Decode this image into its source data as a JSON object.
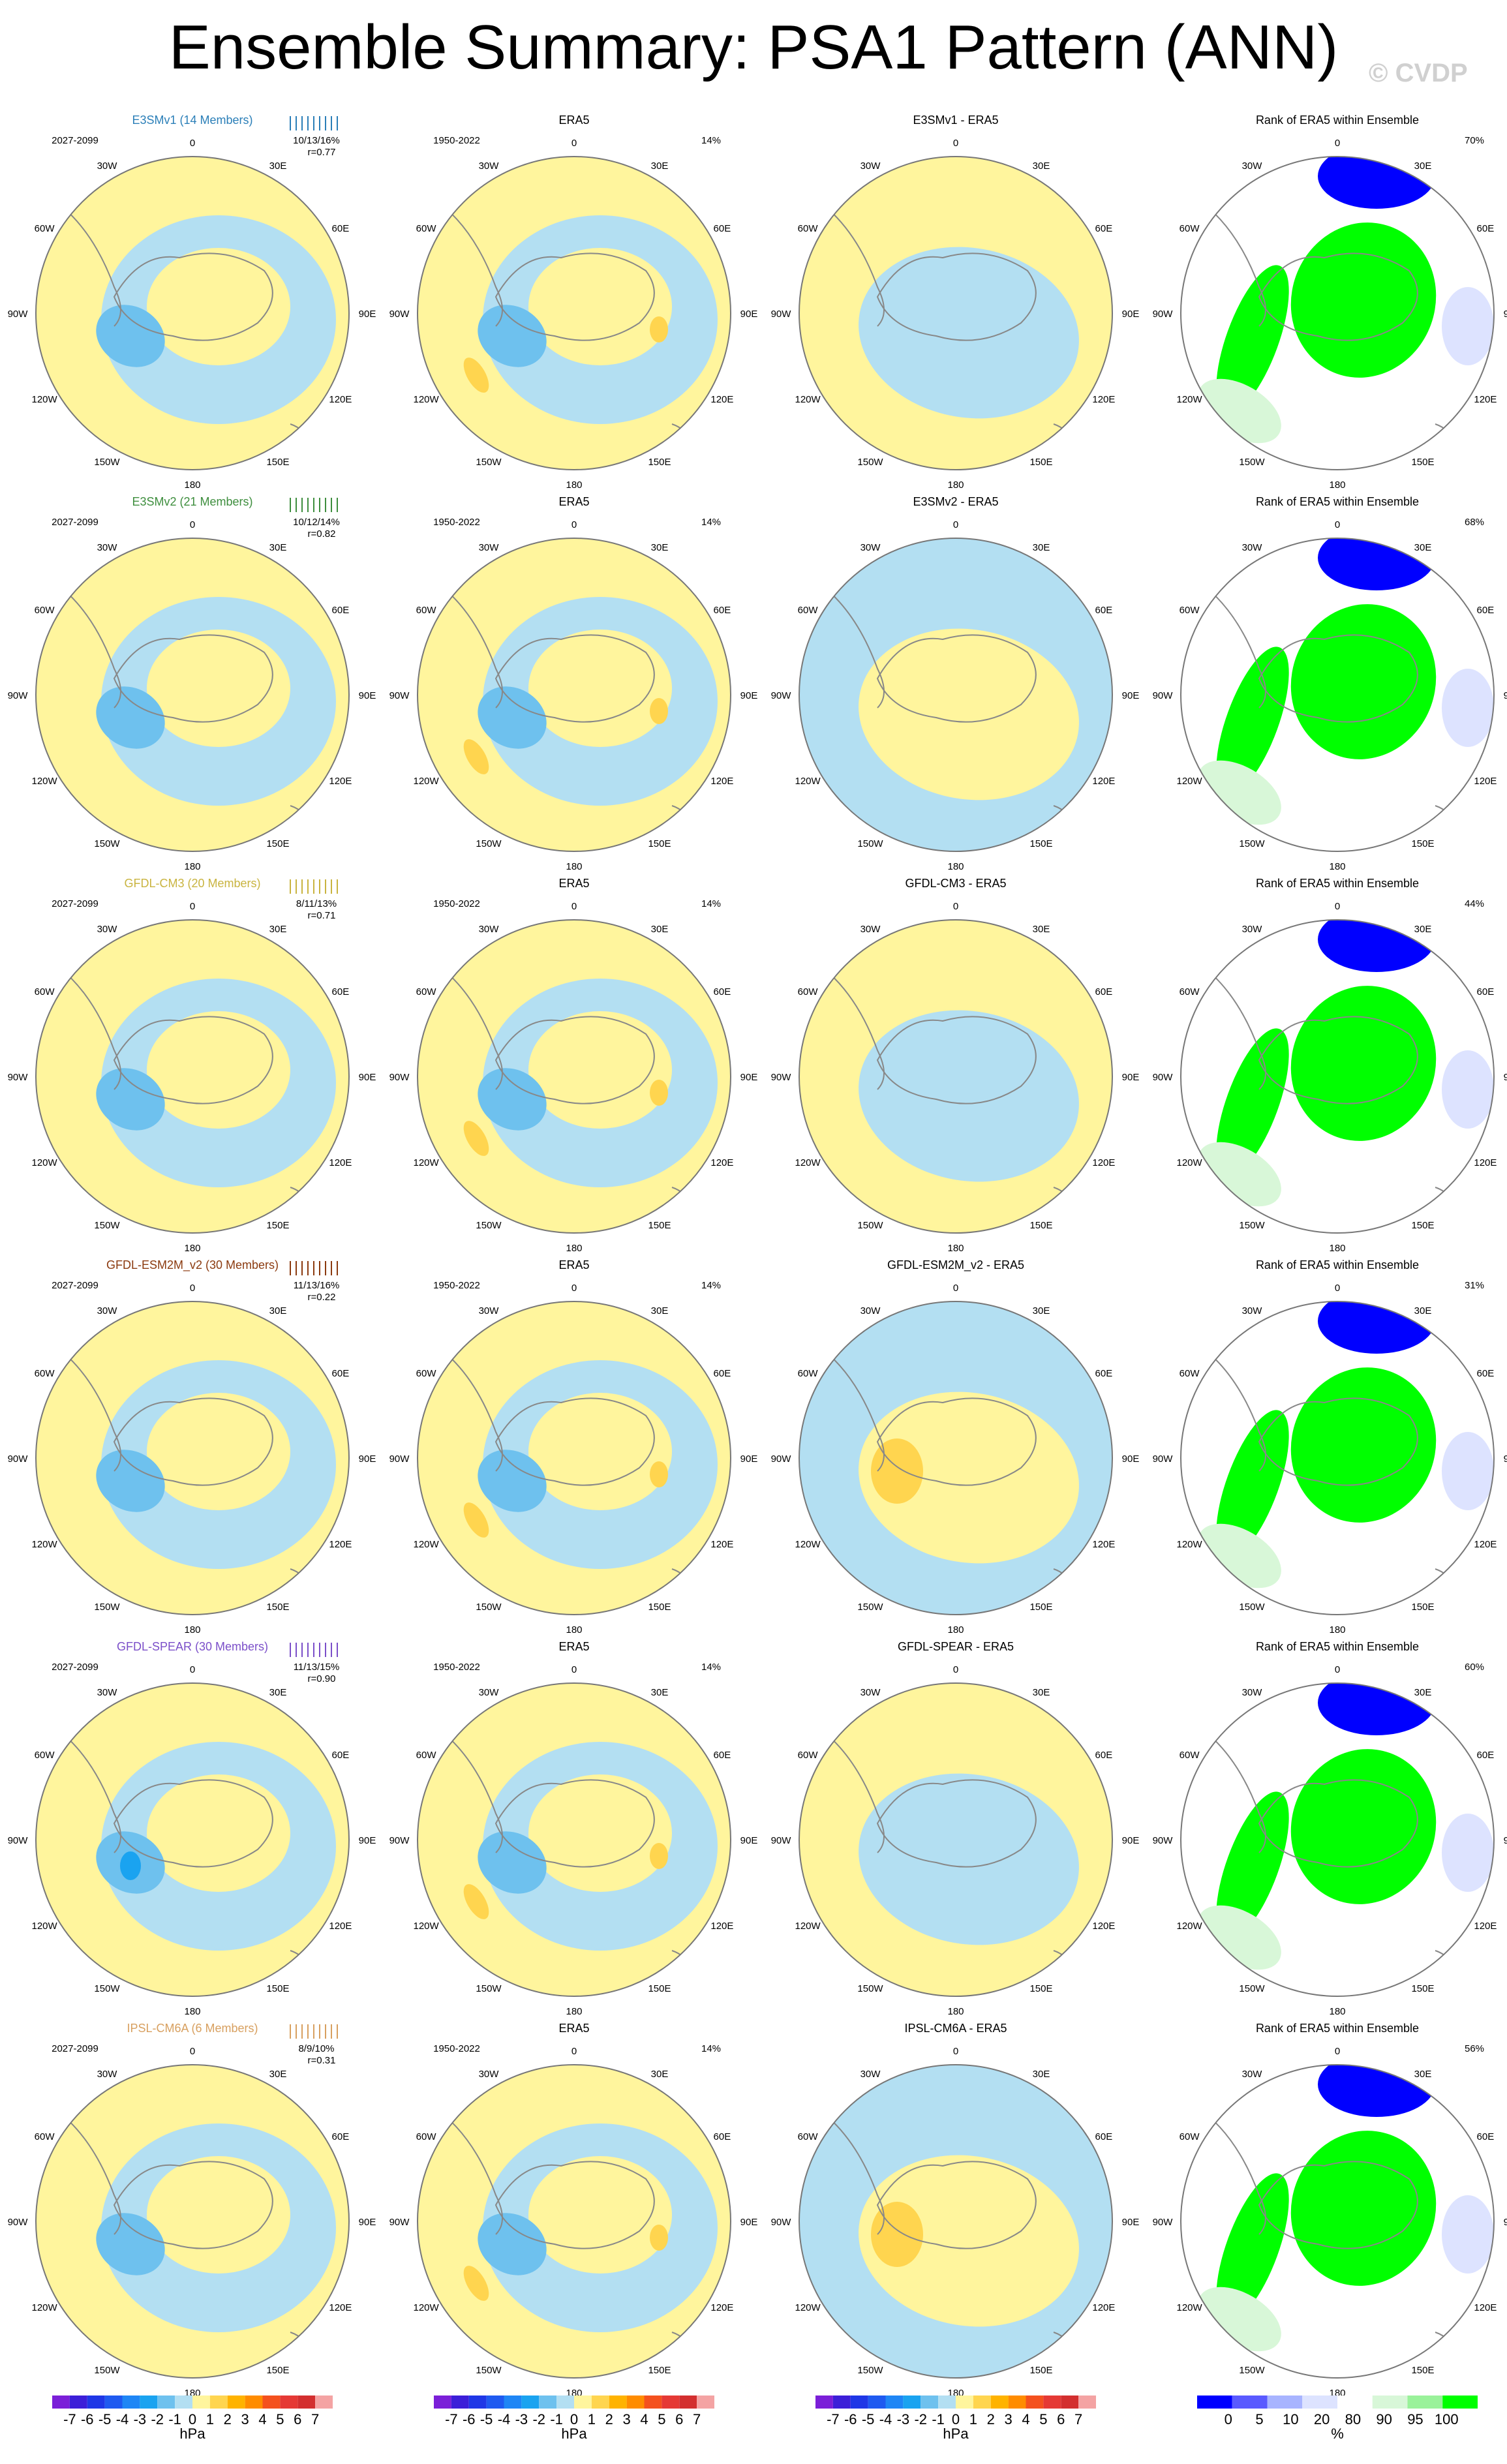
{
  "title": "Ensemble Summary: PSA1 Pattern (ANN)",
  "copyright": "© CVDP",
  "colors": {
    "background": "#ffffff",
    "pos1": "#fff59d",
    "neg1": "#b3dff2",
    "pos2": "#ffd54f",
    "neg2": "#6ec1ee",
    "neg3": "#1aa3f0",
    "rank_blue": "#0000ff",
    "rank_lightblue": "#dde3ff",
    "rank_green": "#00ff00",
    "rank_lightgreen": "#d8f7d8",
    "coast": "#888888"
  },
  "labels": {
    "obs_name": "ERA5",
    "obs_years": "1950-2022",
    "model_years": "2027-2099",
    "obs_pct": "14%",
    "rank_title": "Rank of ERA5 within Ensemble"
  },
  "lon_labels": [
    "0",
    "30E",
    "60E",
    "90E",
    "120E",
    "150E",
    "180",
    "150W",
    "120W",
    "90W",
    "60W",
    "30W"
  ],
  "chart_data": [
    {
      "type": "heatmap",
      "row": 1,
      "model": "E3SMv1 (14 Members)",
      "model_color": "#2b7fb8",
      "pct_label": "10/13/16%",
      "r_label": "r=0.77",
      "diff_title": "E3SMv1 - ERA5",
      "rank_pct": "70%",
      "variable_units": "hPa"
    },
    {
      "type": "heatmap",
      "row": 2,
      "model": "E3SMv2 (21 Members)",
      "model_color": "#3e8e3e",
      "pct_label": "10/12/14%",
      "r_label": "r=0.82",
      "diff_title": "E3SMv2 - ERA5",
      "rank_pct": "68%",
      "variable_units": "hPa"
    },
    {
      "type": "heatmap",
      "row": 3,
      "model": "GFDL-CM3 (20 Members)",
      "model_color": "#c9b440",
      "pct_label": "8/11/13%",
      "r_label": "r=0.71",
      "diff_title": "GFDL-CM3 - ERA5",
      "rank_pct": "44%",
      "variable_units": "hPa"
    },
    {
      "type": "heatmap",
      "row": 4,
      "model": "GFDL-ESM2M_v2 (30 Members)",
      "model_color": "#8b3a0f",
      "pct_label": "11/13/16%",
      "r_label": "r=0.22",
      "diff_title": "GFDL-ESM2M_v2 - ERA5",
      "rank_pct": "31%",
      "variable_units": "hPa"
    },
    {
      "type": "heatmap",
      "row": 5,
      "model": "GFDL-SPEAR (30 Members)",
      "model_color": "#7b4fc9",
      "pct_label": "11/13/15%",
      "r_label": "r=0.90",
      "diff_title": "GFDL-SPEAR - ERA5",
      "rank_pct": "60%",
      "variable_units": "hPa"
    },
    {
      "type": "heatmap",
      "row": 6,
      "model": "IPSL-CM6A (6 Members)",
      "model_color": "#d8a060",
      "pct_label": "8/9/10%",
      "r_label": "r=0.31",
      "diff_title": "IPSL-CM6A - ERA5",
      "rank_pct": "56%",
      "variable_units": "hPa"
    }
  ],
  "colorbar_hpa": {
    "ticks": [
      "-7",
      "-6",
      "-5",
      "-4",
      "-3",
      "-2",
      "-1",
      "0",
      "1",
      "2",
      "3",
      "4",
      "5",
      "6",
      "7"
    ],
    "units": "hPa",
    "colors": [
      "#7b1fd8",
      "#3c1fd8",
      "#1f37e6",
      "#1f5af0",
      "#1f86f5",
      "#1aa3f0",
      "#6ec1ee",
      "#b3dff2",
      "#fff59d",
      "#ffd54f",
      "#ffb300",
      "#ff8c00",
      "#f4511e",
      "#e53935",
      "#d32f2f",
      "#f4a3a3"
    ]
  },
  "colorbar_rank": {
    "ticks": [
      "0",
      "5",
      "10",
      "20",
      "80",
      "90",
      "95",
      "100"
    ],
    "units": "%",
    "colors": [
      "#0000ff",
      "#5a5aff",
      "#a8b4ff",
      "#dde3ff",
      "#ffffff",
      "#d8f7d8",
      "#9af29a",
      "#00ff00"
    ]
  }
}
